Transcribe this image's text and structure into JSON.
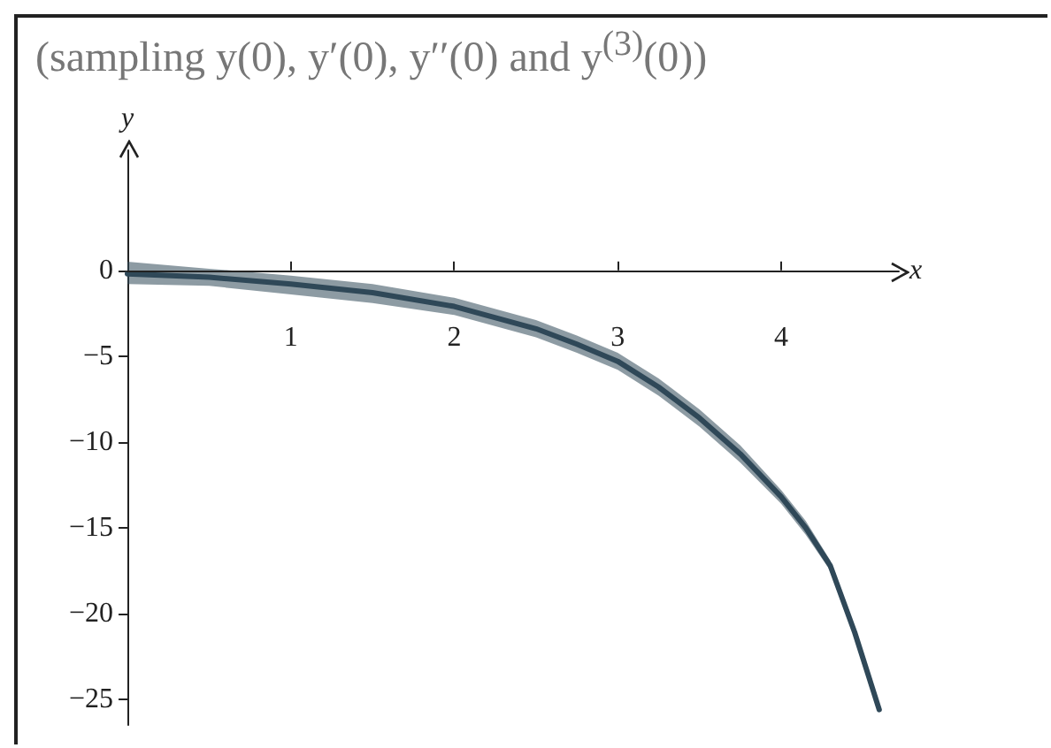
{
  "chart_data": {
    "type": "line",
    "title": "(sampling y(0), y′(0), y′′(0) and y$^{(3)}$(0))",
    "xlabel": "x",
    "ylabel": "y",
    "x": [
      0,
      0.5,
      1,
      1.5,
      2,
      2.5,
      2.75,
      3,
      3.25,
      3.5,
      3.75,
      4,
      4.15,
      4.3,
      4.45,
      4.6
    ],
    "series": [
      {
        "color": "#2f4858",
        "values": [
          -0.2,
          -0.4,
          -0.8,
          -1.3,
          -2.1,
          -3.4,
          -4.3,
          -5.3,
          -6.8,
          -8.6,
          -10.7,
          -13.2,
          -15.0,
          -17.2,
          -21.1,
          -25.6
        ],
        "lower": [
          -0.8,
          -0.9,
          -1.4,
          -1.9,
          -2.6,
          -3.9,
          -4.8,
          -5.8,
          -7.3,
          -9.1,
          -11.2,
          -13.6,
          -15.4,
          -17.5,
          -21.4,
          -25.8
        ],
        "upper": [
          0.5,
          0.1,
          -0.3,
          -0.8,
          -1.6,
          -2.9,
          -3.8,
          -4.8,
          -6.3,
          -8.1,
          -10.2,
          -12.8,
          -14.6,
          -16.9,
          -20.8,
          -25.4
        ]
      }
    ],
    "xlim": [
      0,
      4.72
    ],
    "ylim": [
      -26.5,
      7
    ],
    "xticks": [
      1,
      2,
      3,
      4
    ],
    "yticks": [
      -25,
      -20,
      -15,
      -10,
      -5,
      0
    ],
    "marker": "none",
    "line_style": "solid"
  }
}
